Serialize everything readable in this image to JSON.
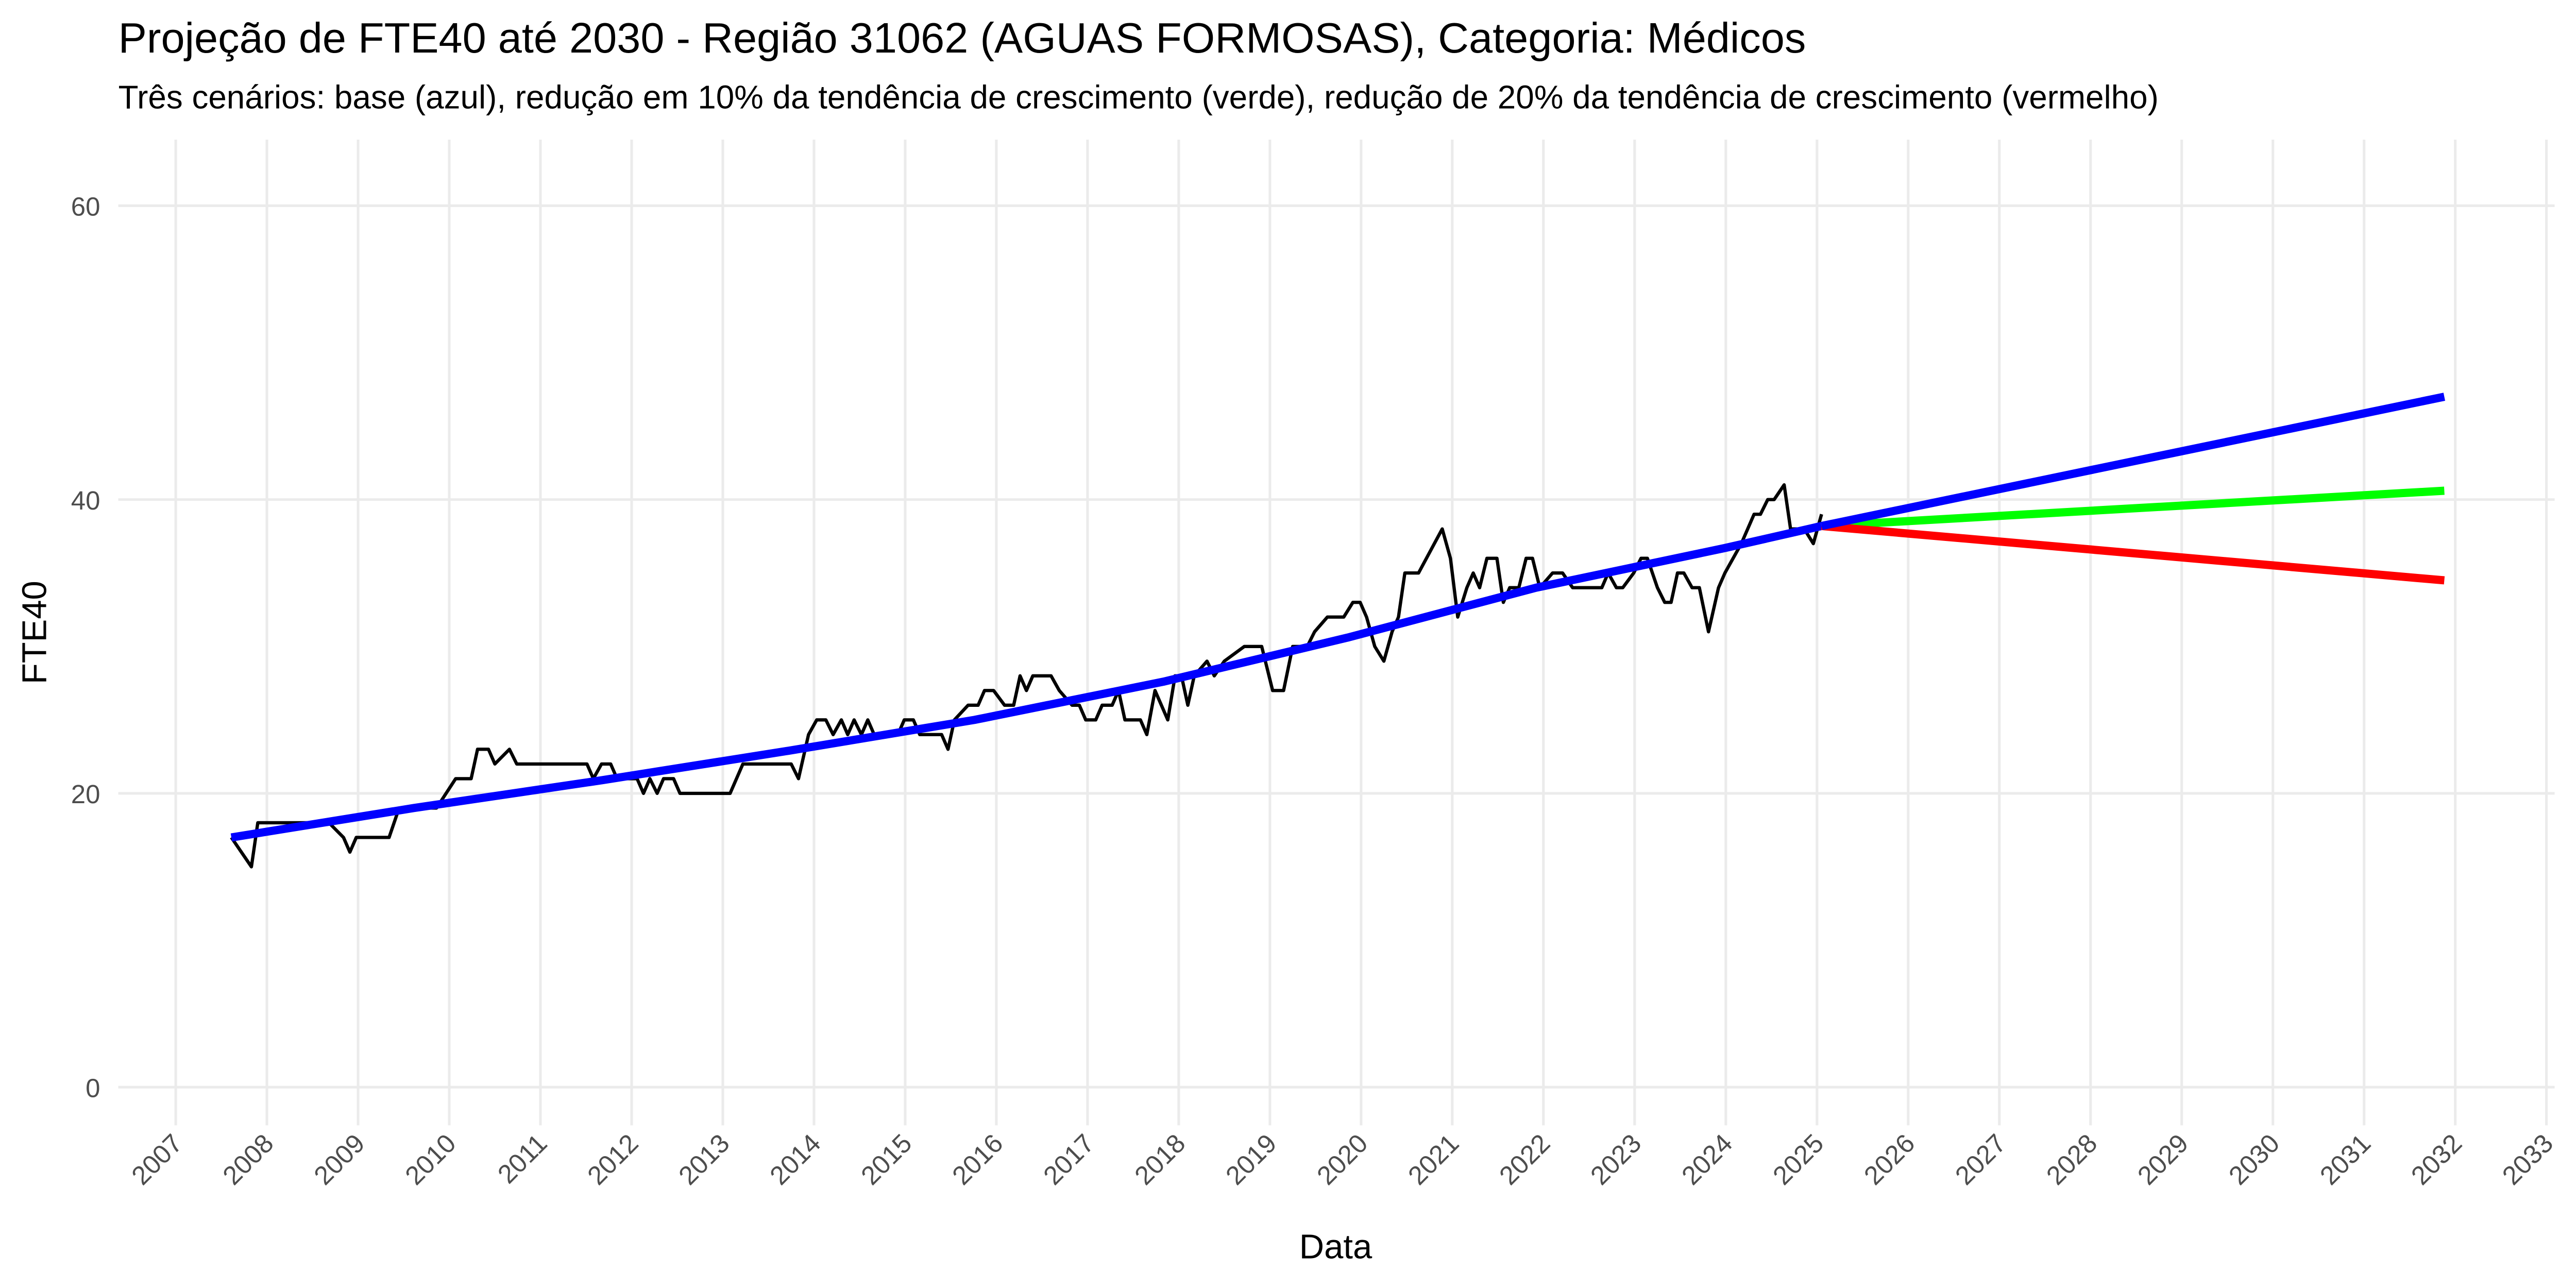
{
  "chart_data": {
    "type": "line",
    "title": "Projeção de FTE40 até 2030 - Região 31062 (AGUAS FORMOSAS), Categoria: Médicos",
    "subtitle": "Três cenários: base (azul), redução em 10% da tendência de crescimento (verde), redução de 20% da tendência de crescimento (vermelho)",
    "xlabel": "Data",
    "ylabel": "FTE40",
    "xlim": [
      2006.37,
      2033.09
    ],
    "ylim": [
      -2.6,
      64.5
    ],
    "xticks": [
      2007,
      2008,
      2009,
      2010,
      2011,
      2012,
      2013,
      2014,
      2015,
      2016,
      2017,
      2018,
      2019,
      2020,
      2021,
      2022,
      2023,
      2024,
      2025,
      2026,
      2027,
      2028,
      2029,
      2030,
      2031,
      2032,
      2033
    ],
    "yticks": [
      0,
      20,
      40,
      60
    ],
    "grid": true,
    "series": [
      {
        "color": "#000000",
        "x": [
          2007.61,
          2007.83,
          2007.9,
          2008.68,
          2008.84,
          2008.91,
          2008.98,
          2009.34,
          2009.45,
          2009.86,
          2010.07,
          2010.24,
          2010.31,
          2010.43,
          2010.5,
          2010.66,
          2010.74,
          2011.51,
          2011.58,
          2011.67,
          2011.77,
          2011.84,
          2012.06,
          2012.13,
          2012.2,
          2012.28,
          2012.35,
          2012.46,
          2012.53,
          2013.08,
          2013.22,
          2013.75,
          2013.83,
          2013.94,
          2014.03,
          2014.13,
          2014.21,
          2014.3,
          2014.37,
          2014.44,
          2014.52,
          2014.59,
          2014.66,
          2014.92,
          2014.99,
          2015.09,
          2015.16,
          2015.4,
          2015.47,
          2015.54,
          2015.69,
          2015.8,
          2015.87,
          2015.97,
          2016.09,
          2016.19,
          2016.26,
          2016.33,
          2016.4,
          2016.6,
          2016.69,
          2016.83,
          2016.91,
          2016.98,
          2017.09,
          2017.16,
          2017.27,
          2017.34,
          2017.41,
          2017.58,
          2017.65,
          2017.74,
          2017.88,
          2017.96,
          2018.03,
          2018.1,
          2018.17,
          2018.31,
          2018.39,
          2018.5,
          2018.72,
          2018.91,
          2019.03,
          2019.15,
          2019.25,
          2019.41,
          2019.49,
          2019.63,
          2019.81,
          2019.91,
          2019.99,
          2020.06,
          2020.15,
          2020.25,
          2020.34,
          2020.41,
          2020.48,
          2020.63,
          2020.89,
          2020.98,
          2021.06,
          2021.16,
          2021.23,
          2021.3,
          2021.38,
          2021.49,
          2021.56,
          2021.63,
          2021.73,
          2021.81,
          2021.88,
          2021.96,
          2022.1,
          2022.21,
          2022.32,
          2022.64,
          2022.71,
          2022.8,
          2022.87,
          2022.99,
          2023.07,
          2023.14,
          2023.25,
          2023.33,
          2023.4,
          2023.47,
          2023.54,
          2023.63,
          2023.71,
          2023.81,
          2023.92,
          2023.99,
          2024.17,
          2024.31,
          2024.38,
          2024.46,
          2024.53,
          2024.64,
          2024.71,
          2024.86,
          2024.96,
          2025.05
        ],
        "values": [
          17,
          15,
          18,
          18,
          17,
          16,
          17,
          17,
          19,
          19,
          21,
          21,
          23,
          23,
          22,
          23,
          22,
          22,
          21,
          22,
          22,
          21,
          21,
          20,
          21,
          20,
          21,
          21,
          20,
          20,
          22,
          22,
          21,
          24,
          25,
          25,
          24,
          25,
          24,
          25,
          24,
          25,
          24,
          24,
          25,
          25,
          24,
          24,
          23,
          25,
          26,
          26,
          27,
          27,
          26,
          26,
          28,
          27,
          28,
          28,
          27,
          26,
          26,
          25,
          25,
          26,
          26,
          27,
          25,
          25,
          24,
          27,
          25,
          28,
          28,
          26,
          28,
          29,
          28,
          29,
          30,
          30,
          27,
          27,
          30,
          30,
          31,
          32,
          32,
          33,
          33,
          32,
          30,
          29,
          31,
          32,
          35,
          35,
          38,
          36,
          32,
          34,
          35,
          34,
          36,
          36,
          33,
          34,
          34,
          36,
          36,
          34,
          35,
          35,
          34,
          34,
          35,
          34,
          34,
          35,
          36,
          36,
          34,
          33,
          33,
          35,
          35,
          34,
          34,
          31,
          34,
          35,
          37,
          39,
          39,
          40,
          40,
          41,
          38,
          38,
          37,
          39
        ]
      },
      {
        "color": "#0000ff",
        "x": [
          2007.61,
          2009.61,
          2011.68,
          2013.72,
          2015.76,
          2017.83,
          2019.85,
          2021.92,
          2023.99,
          2025.05
        ],
        "values": [
          17,
          19.0,
          20.9,
          22.9,
          25.0,
          27.6,
          30.6,
          34.0,
          36.7,
          38.2
        ]
      },
      {
        "color": "#00ff00",
        "x": [
          2025.05,
          2031.88
        ],
        "values": [
          38.2,
          40.6
        ]
      },
      {
        "color": "#ff0000",
        "x": [
          2025.05,
          2031.88
        ],
        "values": [
          38.2,
          34.5
        ]
      },
      {
        "color": "#0000ff",
        "x": [
          2025.05,
          2031.88
        ],
        "values": [
          38.2,
          47.0
        ]
      }
    ]
  }
}
